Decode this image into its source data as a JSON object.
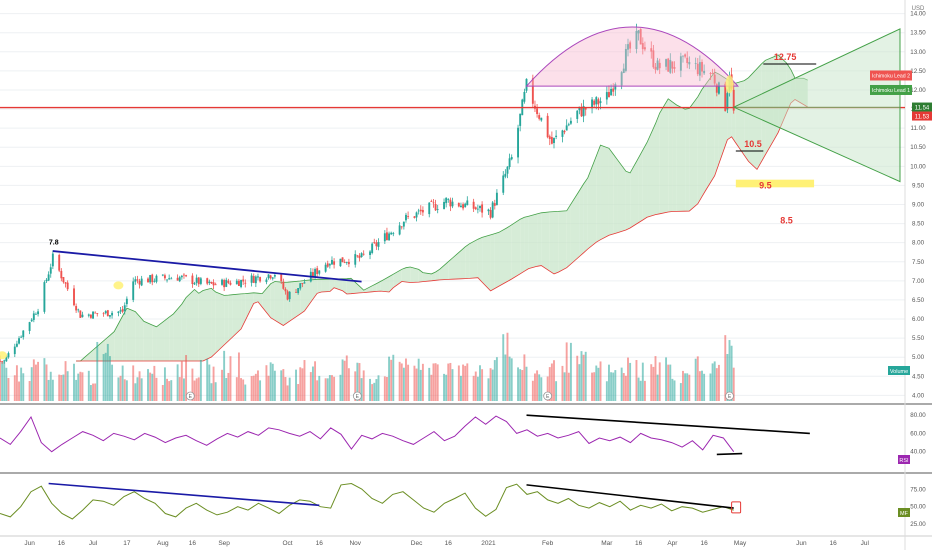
{
  "currency": "USD",
  "price_axis_ticks": [
    "14.00",
    "13.50",
    "13.00",
    "12.50",
    "12.00",
    "11.50",
    "11.00",
    "10.50",
    "10.00",
    "9.50",
    "9.00",
    "8.50",
    "8.00",
    "7.50",
    "7.00",
    "6.50",
    "6.00",
    "5.50",
    "5.00",
    "4.50",
    "4.00"
  ],
  "rsi_axis_ticks": [
    "80.00",
    "60.00",
    "40.00"
  ],
  "mf_axis_ticks": [
    "75.00",
    "50.00",
    "25.00"
  ],
  "time_axis_labels": [
    "Jun",
    "16",
    "Jul",
    "17",
    "Aug",
    "16",
    "Sep",
    "Oct",
    "16",
    "Nov",
    "Dec",
    "16",
    "2021",
    "Feb",
    "Mar",
    "16",
    "Apr",
    "16",
    "May",
    "Jun",
    "16",
    "Jul"
  ],
  "price_badges": {
    "current": "11.54",
    "secondary": "11.53"
  },
  "legend": {
    "lead2": "Ichimoku Lead 2",
    "lead1": "Ichimoku Lead 1",
    "volume": "Volume",
    "rsi": "RSI",
    "mf": "MF"
  },
  "annotations": {
    "high_early": "7.8",
    "target_1275": "12.75",
    "level_105": "10.5",
    "level_95": "9.5",
    "level_85": "8.5",
    "event_marker": "E",
    "event_marker_may": "E"
  },
  "colors": {
    "up": "#26a69a",
    "down": "#ef5350",
    "cloud_bull": "#c8e6c9",
    "cloud_bear": "#ffcdd2",
    "horizontal_line": "#e53935",
    "trend_blue": "#1a1aa6",
    "rsi_line": "#9c27b0",
    "mf_line": "#6b8e23",
    "highlight": "#fff176"
  },
  "chart_data": [
    {
      "type": "candlestick",
      "title": "",
      "xlabel": "",
      "ylabel": "",
      "ylim": [
        3.8,
        14.2
      ],
      "x_range": [
        "2020-05-18",
        "2021-07-20"
      ],
      "series": [
        {
          "name": "close_path",
          "x": [
            "2020-05-20",
            "2020-06-05",
            "2020-06-12",
            "2020-06-25",
            "2020-07-15",
            "2020-07-20",
            "2020-08-10",
            "2020-08-25",
            "2020-09-10",
            "2020-09-25",
            "2020-10-01",
            "2020-10-20",
            "2020-11-05",
            "2020-11-25",
            "2020-12-15",
            "2021-01-05",
            "2021-01-15",
            "2021-01-22",
            "2021-02-03",
            "2021-02-15",
            "2021-03-01",
            "2021-03-10",
            "2021-03-16",
            "2021-03-25",
            "2021-04-08",
            "2021-04-20",
            "2021-04-26",
            "2021-04-28",
            "2021-04-30"
          ],
          "values": [
            4.9,
            6.3,
            7.6,
            6.1,
            6.2,
            7.0,
            7.1,
            6.9,
            7.0,
            7.2,
            6.6,
            7.5,
            7.6,
            8.6,
            9.1,
            8.8,
            10.2,
            12.1,
            10.6,
            11.4,
            11.8,
            12.9,
            13.4,
            12.6,
            12.7,
            12.4,
            11.6,
            12.5,
            11.4
          ]
        }
      ],
      "horizontal_lines": [
        11.54
      ],
      "trendlines": [
        {
          "from": [
            "2020-06-12",
            7.78
          ],
          "to": [
            "2020-11-05",
            6.98
          ]
        }
      ],
      "targets": [
        12.75,
        10.5,
        9.5,
        8.5
      ]
    },
    {
      "type": "bar",
      "title": "",
      "series": [
        {
          "name": "Volume",
          "values": [
            0.55,
            0.45,
            0.6,
            0.35,
            0.5,
            0.4,
            0.7,
            0.5,
            0.45,
            0.6,
            0.4,
            0.55,
            0.5,
            0.45,
            0.6,
            0.35,
            0.5,
            0.55,
            0.4,
            0.5,
            0.45,
            0.6,
            0.5,
            0.4,
            0.55,
            0.65,
            0.5,
            0.6,
            0.45,
            0.55,
            0.5,
            1.0,
            0.55,
            0.45,
            0.5,
            0.7,
            0.6,
            0.5,
            0.45,
            0.55,
            0.5,
            0.6,
            0.45,
            0.55,
            0.5,
            0.85
          ]
        }
      ]
    },
    {
      "type": "line",
      "title": "",
      "ylim": [
        20,
        90
      ],
      "series": [
        {
          "name": "RSI",
          "values": [
            55,
            48,
            62,
            78,
            50,
            40,
            48,
            55,
            62,
            58,
            52,
            60,
            57,
            53,
            60,
            56,
            50,
            55,
            58,
            52,
            47,
            54,
            60,
            56,
            62,
            58,
            66,
            64,
            60,
            57,
            62,
            54,
            66,
            59,
            43,
            58,
            54,
            60,
            57,
            52,
            48,
            55,
            62,
            52,
            57,
            68,
            78,
            70,
            79,
            73,
            60,
            64,
            57,
            60,
            55,
            58,
            62,
            49,
            55,
            52,
            56,
            50,
            60,
            55,
            53,
            50,
            45,
            52,
            42,
            58,
            55,
            40
          ]
        }
      ],
      "trendlines": [
        {
          "from": [
            "2021-01-22",
            80
          ],
          "to": [
            "2021-06-05",
            60
          ]
        },
        {
          "from": [
            "2021-04-22",
            37
          ],
          "to": [
            "2021-05-04",
            38
          ]
        }
      ]
    },
    {
      "type": "line",
      "title": "",
      "ylim": [
        10,
        95
      ],
      "series": [
        {
          "name": "MF",
          "values": [
            40,
            35,
            50,
            72,
            80,
            55,
            40,
            32,
            45,
            60,
            58,
            52,
            65,
            72,
            62,
            55,
            40,
            35,
            48,
            55,
            45,
            38,
            42,
            50,
            45,
            55,
            48,
            40,
            52,
            60,
            58,
            50,
            48,
            82,
            84,
            76,
            62,
            55,
            68,
            72,
            60,
            48,
            42,
            55,
            62,
            70,
            48,
            36,
            46,
            78,
            83,
            68,
            72,
            60,
            55,
            62,
            52,
            48,
            56,
            50,
            58,
            45,
            52,
            48,
            54,
            44,
            50,
            48,
            42,
            46,
            50,
            45
          ]
        }
      ],
      "trendlines": [
        {
          "from": [
            "2020-06-10",
            84
          ],
          "to": [
            "2020-10-16",
            52
          ]
        },
        {
          "from": [
            "2021-01-22",
            82
          ],
          "to": [
            "2021-04-30",
            48
          ]
        }
      ]
    }
  ]
}
